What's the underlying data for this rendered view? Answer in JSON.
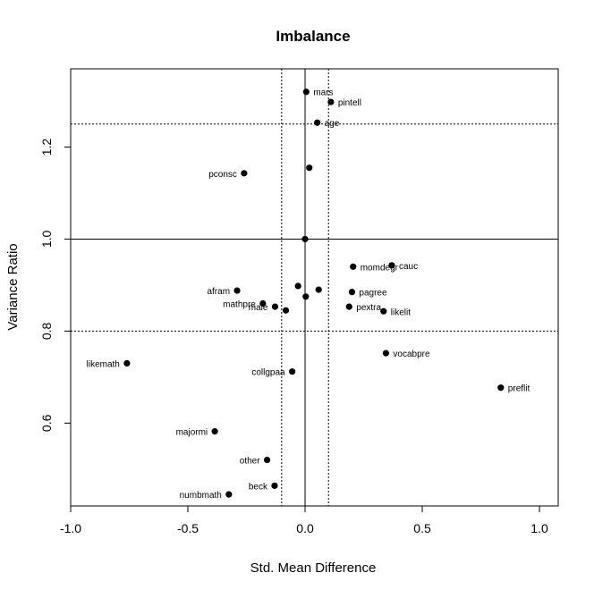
{
  "chart_data": {
    "type": "scatter",
    "title": "Imbalance",
    "xlabel": "Std. Mean Difference",
    "ylabel": "Variance Ratio",
    "xlim": [
      -1.0,
      1.08
    ],
    "ylim": [
      0.42,
      1.37
    ],
    "xticks": [
      -1.0,
      -0.5,
      0.0,
      0.5,
      1.0
    ],
    "xtick_labels": [
      "-1.0",
      "-0.5",
      "0.0",
      "0.5",
      "1.0"
    ],
    "yticks": [
      0.6,
      0.8,
      1.0,
      1.2
    ],
    "ytick_labels": [
      "0.6",
      "0.8",
      "1.0",
      "1.2"
    ],
    "reference_lines": {
      "solid_vertical_x": 0.0,
      "solid_horizontal_y": 1.0,
      "dotted_vertical_x": [
        -0.1,
        0.1
      ],
      "dotted_horizontal_y": [
        0.8,
        1.25
      ]
    },
    "grid": false,
    "legend": "none",
    "points": [
      {
        "x": 0.005,
        "y": 1.32,
        "label": "mars",
        "label_side": "right"
      },
      {
        "x": 0.11,
        "y": 1.298,
        "label": "pintell",
        "label_side": "right"
      },
      {
        "x": 0.052,
        "y": 1.253,
        "label": "age",
        "label_side": "right"
      },
      {
        "x": -0.26,
        "y": 1.143,
        "label": "pconsc",
        "label_side": "left"
      },
      {
        "x": 0.018,
        "y": 1.155,
        "label": null
      },
      {
        "x": 0.0,
        "y": 1.0,
        "label": null
      },
      {
        "x": 0.205,
        "y": 0.94,
        "label": "momdegr",
        "label_side": "right"
      },
      {
        "x": 0.37,
        "y": 0.943,
        "label": "cauc",
        "label_side": "right"
      },
      {
        "x": -0.29,
        "y": 0.888,
        "label": "afram",
        "label_side": "left"
      },
      {
        "x": -0.03,
        "y": 0.898,
        "label": null
      },
      {
        "x": 0.058,
        "y": 0.89,
        "label": null
      },
      {
        "x": 0.003,
        "y": 0.875,
        "label": null
      },
      {
        "x": 0.2,
        "y": 0.885,
        "label": "pagree",
        "label_side": "right"
      },
      {
        "x": -0.18,
        "y": 0.86,
        "label": "mathpre",
        "label_side": "left"
      },
      {
        "x": -0.128,
        "y": 0.853,
        "label": "male",
        "label_side": "left"
      },
      {
        "x": -0.082,
        "y": 0.845,
        "label": null
      },
      {
        "x": 0.188,
        "y": 0.853,
        "label": "pextra",
        "label_side": "right"
      },
      {
        "x": 0.335,
        "y": 0.843,
        "label": "likelit",
        "label_side": "right"
      },
      {
        "x": -0.76,
        "y": 0.73,
        "label": "likemath",
        "label_side": "left"
      },
      {
        "x": 0.345,
        "y": 0.752,
        "label": "vocabpre",
        "label_side": "right"
      },
      {
        "x": -0.055,
        "y": 0.712,
        "label": "collgpaa",
        "label_side": "left"
      },
      {
        "x": 0.835,
        "y": 0.677,
        "label": "preflit",
        "label_side": "right"
      },
      {
        "x": -0.385,
        "y": 0.582,
        "label": "majormi",
        "label_side": "left"
      },
      {
        "x": -0.162,
        "y": 0.52,
        "label": "other",
        "label_side": "left"
      },
      {
        "x": -0.13,
        "y": 0.464,
        "label": "beck",
        "label_side": "left"
      },
      {
        "x": -0.325,
        "y": 0.445,
        "label": "numbmath",
        "label_side": "left"
      }
    ]
  }
}
